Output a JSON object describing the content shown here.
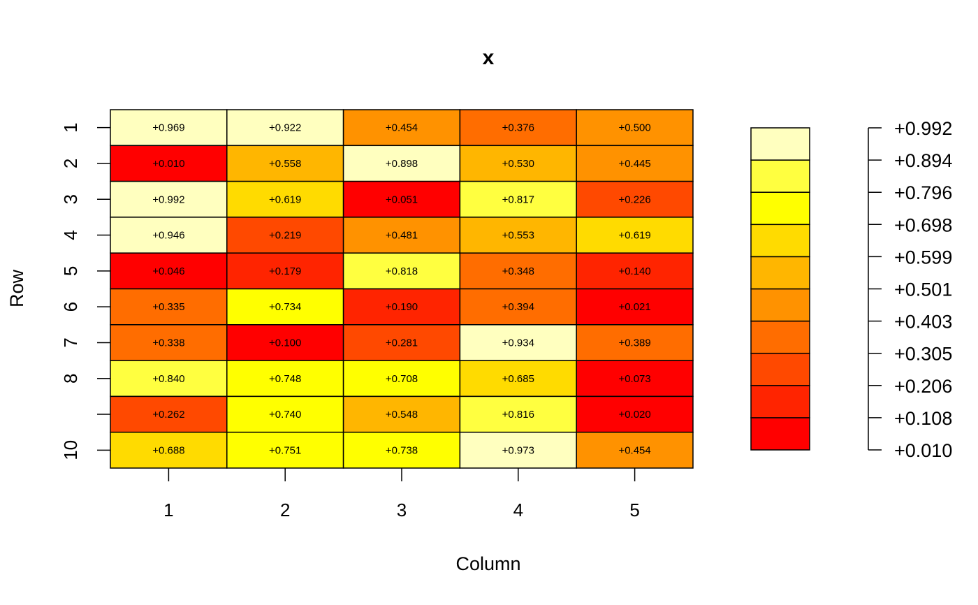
{
  "chart_data": {
    "type": "heatmap",
    "title": "x",
    "xlabel": "Column",
    "ylabel": "Row",
    "columns": [
      "1",
      "2",
      "3",
      "4",
      "5"
    ],
    "rows": [
      "1",
      "2",
      "3",
      "4",
      "5",
      "6",
      "7",
      "8",
      "",
      "10"
    ],
    "values": [
      [
        "+0.969",
        "+0.922",
        "+0.454",
        "+0.376",
        "+0.500"
      ],
      [
        "+0.010",
        "+0.558",
        "+0.898",
        "+0.530",
        "+0.445"
      ],
      [
        "+0.992",
        "+0.619",
        "+0.051",
        "+0.817",
        "+0.226"
      ],
      [
        "+0.946",
        "+0.219",
        "+0.481",
        "+0.553",
        "+0.619"
      ],
      [
        "+0.046",
        "+0.179",
        "+0.818",
        "+0.348",
        "+0.140"
      ],
      [
        "+0.335",
        "+0.734",
        "+0.190",
        "+0.394",
        "+0.021"
      ],
      [
        "+0.338",
        "+0.100",
        "+0.281",
        "+0.934",
        "+0.389"
      ],
      [
        "+0.840",
        "+0.748",
        "+0.708",
        "+0.685",
        "+0.073"
      ],
      [
        "+0.262",
        "+0.740",
        "+0.548",
        "+0.816",
        "+0.020"
      ],
      [
        "+0.688",
        "+0.751",
        "+0.738",
        "+0.973",
        "+0.454"
      ]
    ],
    "color_breaks": [
      0.01,
      0.108,
      0.206,
      0.305,
      0.403,
      0.501,
      0.599,
      0.698,
      0.796,
      0.894,
      0.992
    ],
    "colors": [
      "#FF0000",
      "#FF2400",
      "#FF4900",
      "#FF6D00",
      "#FF9200",
      "#FFB600",
      "#FFDB00",
      "#FFFF00",
      "#FFFF40",
      "#FFFFBF"
    ],
    "legend_labels": [
      "+0.992",
      "+0.894",
      "+0.796",
      "+0.698",
      "+0.599",
      "+0.501",
      "+0.403",
      "+0.305",
      "+0.206",
      "+0.108",
      "+0.010"
    ]
  }
}
